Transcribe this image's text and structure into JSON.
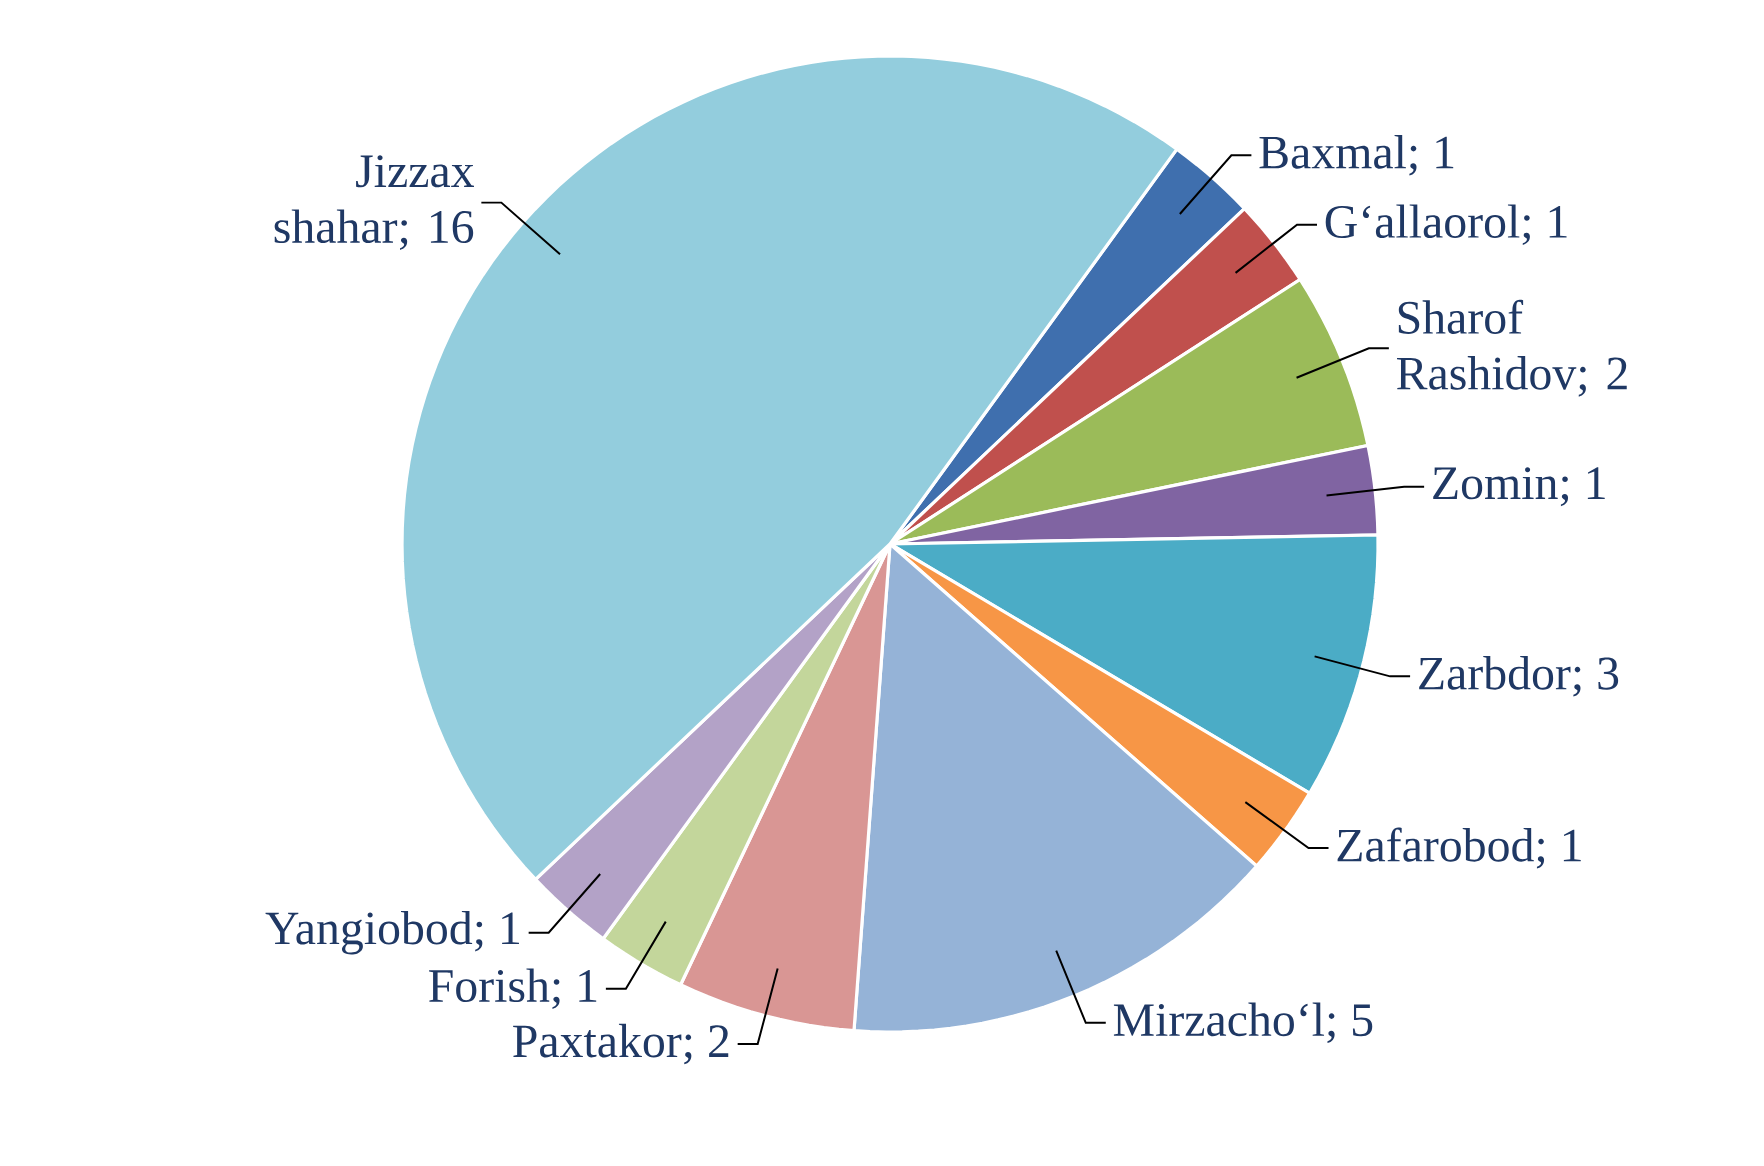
{
  "chart_data": {
    "type": "pie",
    "categories": [
      "Baxmal",
      "G‘allaorol",
      "Sharof Rashidov",
      "Zomin",
      "Zarbdor",
      "Zafarobod",
      "Mirzacho‘l",
      "Paxtakor",
      "Forish",
      "Yangiobod",
      "Jizzax shahar"
    ],
    "values": [
      1,
      1,
      2,
      1,
      3,
      1,
      5,
      2,
      1,
      1,
      16
    ],
    "colors": [
      "#3f6fae",
      "#c0504d",
      "#9bbb59",
      "#8064a2",
      "#4bacc6",
      "#f79646",
      "#95b3d7",
      "#d99694",
      "#c3d69b",
      "#b3a2c7",
      "#93cddd"
    ],
    "value_labels": [
      "; 1",
      "; 1",
      "; 2",
      "; 1",
      "; 3",
      "; 1",
      "; 5",
      "; 2",
      "; 1",
      "; 1",
      "; 16"
    ]
  }
}
